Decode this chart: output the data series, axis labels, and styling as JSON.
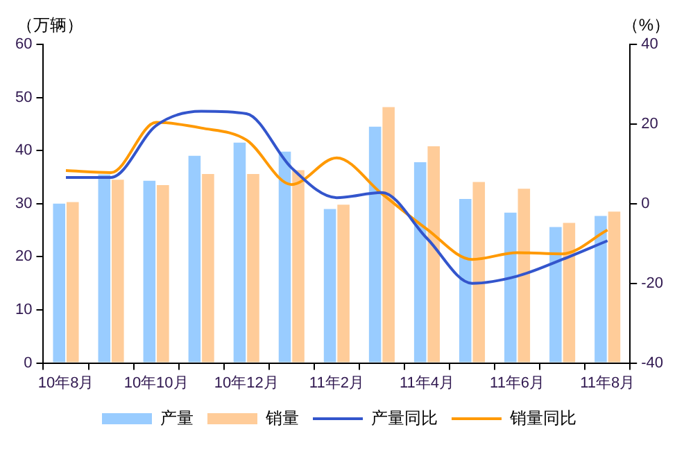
{
  "chart_data": {
    "type": "bar",
    "ylabel": "（万辆）",
    "y2label": "（%）",
    "categories": [
      "10年8月",
      null,
      "10年10月",
      null,
      "10年12月",
      null,
      "11年2月",
      null,
      "11年4月",
      null,
      "11年6月",
      null,
      "11年8月"
    ],
    "series": [
      {
        "name": "产量",
        "color": "#99ccff",
        "values": [
          30,
          35.5,
          34.3,
          39,
          41.5,
          39.8,
          29,
          44.5,
          37.8,
          30.9,
          28.3,
          25.6,
          27.7
        ]
      },
      {
        "name": "销量",
        "color": "#ffcc99",
        "values": [
          30.3,
          34.5,
          33.5,
          35.6,
          35.6,
          36.3,
          29.8,
          48.2,
          40.8,
          34.1,
          32.8,
          26.4,
          28.5
        ]
      },
      {
        "name": "产量同比",
        "type": "line",
        "axis": "y2",
        "color": "#3355cc",
        "values": [
          6.6,
          6.6,
          19.6,
          23.2,
          22.6,
          9,
          1.5,
          2.8,
          -8.7,
          -20,
          -18.2,
          -14,
          -9.3
        ]
      },
      {
        "name": "销量同比",
        "type": "line",
        "axis": "y2",
        "color": "#ff9900",
        "values": [
          8.3,
          7.8,
          20.4,
          19,
          16,
          4.8,
          11.5,
          2.5,
          -6.4,
          -14,
          -12.3,
          -12.6,
          -6.6
        ]
      }
    ],
    "ylim": [
      0,
      60
    ],
    "yticks": [
      0,
      10,
      20,
      30,
      40,
      50,
      60
    ],
    "y2lim": [
      -40,
      40
    ],
    "y2ticks": [
      -40,
      -20,
      0,
      20,
      40
    ],
    "grid": false,
    "legend": "bottom",
    "marker": "none",
    "line_style": "solid"
  }
}
